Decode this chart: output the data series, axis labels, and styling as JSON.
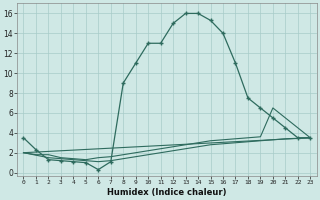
{
  "xlabel": "Humidex (Indice chaleur)",
  "bg_color": "#cfe8e5",
  "line_color": "#2e6b5e",
  "grid_color": "#a8ccc9",
  "xlim": [
    -0.5,
    23.5
  ],
  "ylim": [
    -0.3,
    17
  ],
  "yticks": [
    0,
    2,
    4,
    6,
    8,
    10,
    12,
    14,
    16
  ],
  "xticks": [
    0,
    1,
    2,
    3,
    4,
    5,
    6,
    7,
    8,
    9,
    10,
    11,
    12,
    13,
    14,
    15,
    16,
    17,
    18,
    19,
    20,
    21,
    22,
    23
  ],
  "main_curve": {
    "x": [
      0,
      1,
      2,
      3,
      4,
      5,
      6,
      7,
      8,
      9,
      10,
      11,
      12,
      13,
      14,
      15,
      16,
      17,
      18,
      19,
      20,
      21,
      22,
      23
    ],
    "y": [
      3.5,
      2.3,
      1.3,
      1.2,
      1.1,
      1.0,
      0.3,
      1.1,
      9.0,
      11.0,
      13.0,
      13.0,
      15.0,
      16.0,
      16.0,
      15.3,
      14.0,
      11.0,
      7.5,
      6.5,
      5.5,
      4.5,
      3.5,
      3.5
    ]
  },
  "flat_lines": [
    {
      "x": [
        0,
        1,
        2,
        3,
        4,
        5,
        6,
        7,
        8,
        9,
        10,
        11,
        12,
        13,
        14,
        15,
        16,
        17,
        18,
        19,
        20,
        21,
        22,
        23
      ],
      "y": [
        2.0,
        1.8,
        1.8,
        1.5,
        1.4,
        1.3,
        1.5,
        1.6,
        1.8,
        2.0,
        2.2,
        2.4,
        2.6,
        2.8,
        3.0,
        3.2,
        3.3,
        3.4,
        3.5,
        3.6,
        6.5,
        5.5,
        4.5,
        3.5
      ]
    },
    {
      "x": [
        0,
        2,
        3,
        4,
        5,
        6,
        7,
        8,
        9,
        10,
        11,
        12,
        13,
        14,
        15,
        16,
        17,
        18,
        19,
        20,
        21,
        22,
        23
      ],
      "y": [
        2.0,
        1.5,
        1.4,
        1.3,
        1.2,
        1.1,
        1.2,
        1.4,
        1.6,
        1.8,
        2.0,
        2.2,
        2.4,
        2.6,
        2.8,
        2.9,
        3.0,
        3.1,
        3.2,
        3.3,
        3.4,
        3.45,
        3.5
      ]
    },
    {
      "x": [
        0,
        23
      ],
      "y": [
        2.0,
        3.5
      ]
    }
  ]
}
